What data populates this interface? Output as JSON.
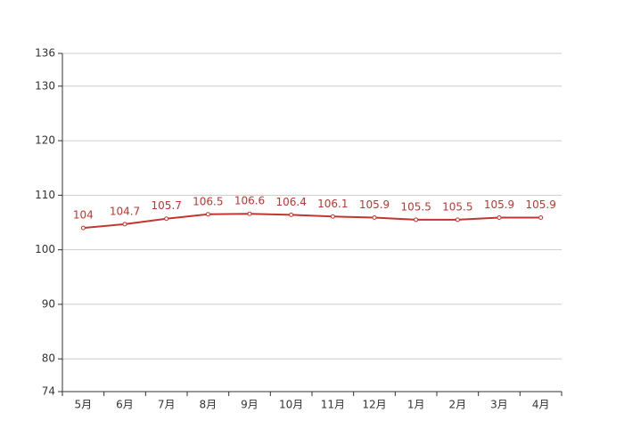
{
  "chart_data": {
    "type": "line",
    "categories": [
      "5月",
      "6月",
      "7月",
      "8月",
      "9月",
      "10月",
      "11月",
      "12月",
      "1月",
      "2月",
      "3月",
      "4月"
    ],
    "values": [
      104,
      104.7,
      105.7,
      106.5,
      106.6,
      106.4,
      106.1,
      105.9,
      105.5,
      105.5,
      105.9,
      105.9
    ],
    "color": "#c23531",
    "ylim": [
      74,
      136
    ],
    "yticks": [
      74,
      80,
      90,
      100,
      110,
      120,
      130,
      136
    ],
    "grid": true
  }
}
